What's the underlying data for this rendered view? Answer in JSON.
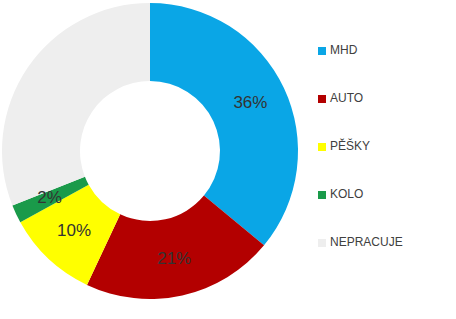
{
  "chart_data": {
    "type": "donut",
    "categories": [
      "MHD",
      "AUTO",
      "PĚŠKY",
      "KOLO",
      "NEPRACUJE"
    ],
    "values": [
      36,
      21,
      10,
      2,
      31
    ],
    "value_labels": [
      "36%",
      "21%",
      "10%",
      "2%",
      null
    ],
    "colors": [
      "#0aa6e6",
      "#b30000",
      "#ffff00",
      "#1a9a4a",
      "#eeeeee"
    ],
    "data_labels": true,
    "legend": "right"
  }
}
